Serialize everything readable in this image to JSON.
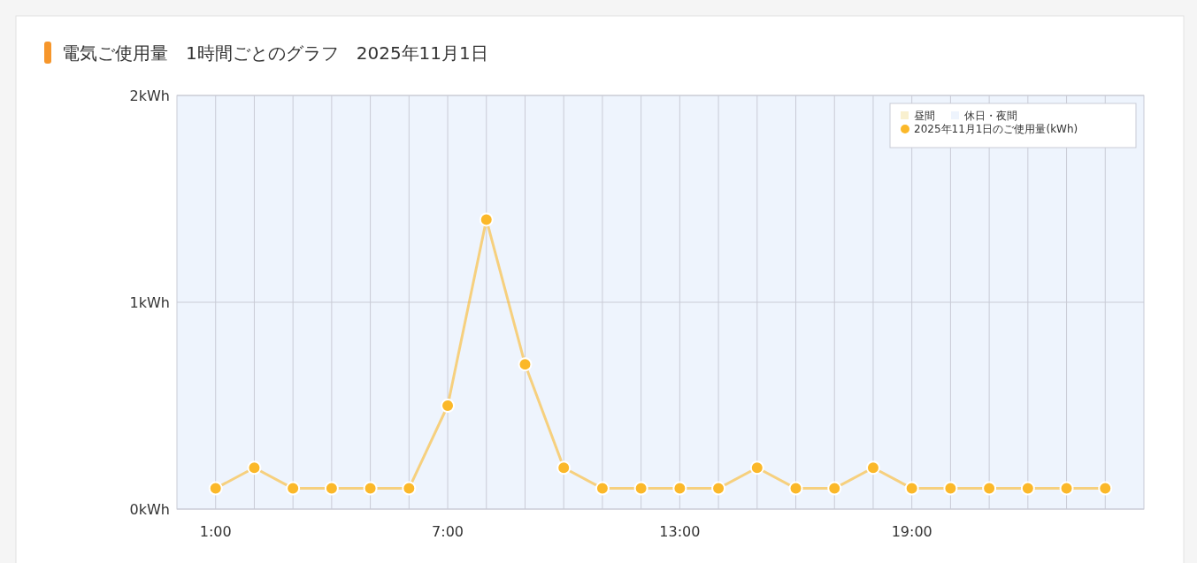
{
  "chart_data": {
    "type": "line",
    "title": "電気ご使用量　1時間ごとのグラフ　2025年11月1日",
    "x": [
      1,
      2,
      3,
      4,
      5,
      6,
      7,
      8,
      9,
      10,
      11,
      12,
      13,
      14,
      15,
      16,
      17,
      18,
      19,
      20,
      21,
      22,
      23,
      24
    ],
    "series": [
      {
        "name": "2025年11月1日のご使用量(kWh)",
        "color": "#fbb829",
        "values": [
          0.1,
          0.2,
          0.1,
          0.1,
          0.1,
          0.1,
          0.5,
          1.4,
          0.7,
          0.2,
          0.1,
          0.1,
          0.1,
          0.1,
          0.2,
          0.1,
          0.1,
          0.2,
          0.1,
          0.1,
          0.1,
          0.1,
          0.1,
          0.1
        ]
      }
    ],
    "xlim": [
      0,
      25
    ],
    "xticks": [
      {
        "value": 1,
        "label": "1:00"
      },
      {
        "value": 2,
        "label": null
      },
      {
        "value": 3,
        "label": null
      },
      {
        "value": 4,
        "label": null
      },
      {
        "value": 5,
        "label": null
      },
      {
        "value": 6,
        "label": null
      },
      {
        "value": 7,
        "label": "7:00"
      },
      {
        "value": 8,
        "label": null
      },
      {
        "value": 9,
        "label": null
      },
      {
        "value": 10,
        "label": null
      },
      {
        "value": 11,
        "label": null
      },
      {
        "value": 12,
        "label": null
      },
      {
        "value": 13,
        "label": "13:00"
      },
      {
        "value": 14,
        "label": null
      },
      {
        "value": 15,
        "label": null
      },
      {
        "value": 16,
        "label": null
      },
      {
        "value": 17,
        "label": null
      },
      {
        "value": 18,
        "label": null
      },
      {
        "value": 19,
        "label": "19:00"
      },
      {
        "value": 20,
        "label": null
      },
      {
        "value": 21,
        "label": null
      },
      {
        "value": 22,
        "label": null
      },
      {
        "value": 23,
        "label": null
      },
      {
        "value": 24,
        "label": null
      }
    ],
    "ylim": [
      0,
      2
    ],
    "yticks": [
      {
        "value": 0,
        "label": "0kWh"
      },
      {
        "value": 1,
        "label": "1kWh"
      },
      {
        "value": 2,
        "label": "2kWh"
      }
    ],
    "annotations": [
      "昼間"
    ],
    "bands": [
      {
        "axis": "x",
        "from": 0,
        "to": 25,
        "label": "休日・夜間",
        "color": "#eef4fd"
      }
    ],
    "grid": true,
    "legend": "top right",
    "marker": "circle"
  }
}
